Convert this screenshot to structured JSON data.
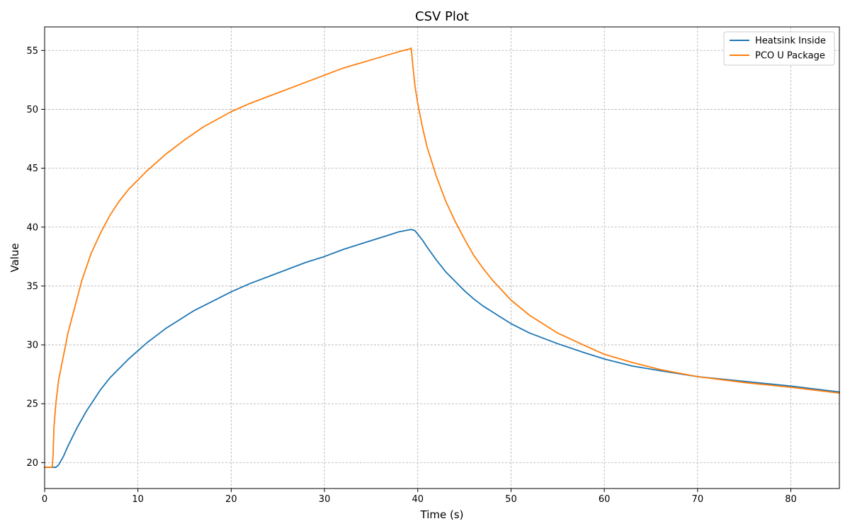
{
  "chart_data": {
    "type": "line",
    "title": "CSV Plot",
    "xlabel": "Time (s)",
    "ylabel": "Value",
    "xlim": [
      0,
      85.2
    ],
    "ylim": [
      17.8,
      57.0
    ],
    "xticks": [
      0,
      10,
      20,
      30,
      40,
      50,
      60,
      70,
      80
    ],
    "yticks": [
      20,
      25,
      30,
      35,
      40,
      45,
      50,
      55
    ],
    "grid": true,
    "legend_position": "top-right",
    "series": [
      {
        "name": "Heatsink Inside",
        "color": "#1f77b4",
        "x": [
          0,
          1,
          1.2,
          1.5,
          2,
          2.5,
          3,
          3.5,
          4,
          4.5,
          5,
          6,
          7,
          8,
          9,
          10,
          11,
          12,
          13,
          14,
          15,
          16,
          17,
          18,
          20,
          22,
          24,
          26,
          28,
          30,
          32,
          34,
          36,
          38,
          39.3,
          39.7,
          40,
          40.5,
          41,
          42,
          43,
          44,
          45,
          46,
          47,
          48,
          49,
          50,
          52,
          55,
          58,
          60,
          63,
          66,
          70,
          75,
          80,
          85.2
        ],
        "y": [
          19.6,
          19.6,
          19.6,
          19.8,
          20.5,
          21.4,
          22.2,
          23.0,
          23.7,
          24.4,
          25.0,
          26.2,
          27.2,
          28.0,
          28.8,
          29.5,
          30.2,
          30.8,
          31.4,
          31.9,
          32.4,
          32.9,
          33.3,
          33.7,
          34.5,
          35.2,
          35.8,
          36.4,
          37.0,
          37.5,
          38.1,
          38.6,
          39.1,
          39.6,
          39.8,
          39.7,
          39.4,
          38.9,
          38.3,
          37.2,
          36.2,
          35.4,
          34.6,
          33.9,
          33.3,
          32.8,
          32.3,
          31.8,
          31.0,
          30.1,
          29.3,
          28.8,
          28.2,
          27.8,
          27.3,
          26.9,
          26.5,
          26.0
        ]
      },
      {
        "name": "PCO U Package",
        "color": "#ff7f0e",
        "x": [
          0,
          0.8,
          0.9,
          1.0,
          1.2,
          1.5,
          2,
          2.5,
          3,
          3.5,
          4,
          5,
          6,
          7,
          8,
          9,
          10,
          11,
          12,
          13,
          14,
          15,
          17,
          20,
          22,
          25,
          28,
          30,
          32,
          35,
          38,
          39.0,
          39.3,
          39.5,
          39.7,
          40,
          40.5,
          41,
          42,
          43,
          44,
          45,
          46,
          47,
          48,
          50,
          52,
          55,
          58,
          60,
          63,
          66,
          70,
          75,
          80,
          85.2
        ],
        "y": [
          19.6,
          19.6,
          20.5,
          23.0,
          25.0,
          27.0,
          29.0,
          31.0,
          32.5,
          34.0,
          35.5,
          37.8,
          39.5,
          41.0,
          42.2,
          43.2,
          44.0,
          44.8,
          45.5,
          46.2,
          46.8,
          47.4,
          48.5,
          49.8,
          50.5,
          51.4,
          52.3,
          52.9,
          53.5,
          54.2,
          54.9,
          55.1,
          55.2,
          53.5,
          52.0,
          50.5,
          48.5,
          46.8,
          44.3,
          42.2,
          40.5,
          39.0,
          37.6,
          36.5,
          35.5,
          33.8,
          32.5,
          31.0,
          29.9,
          29.2,
          28.5,
          27.9,
          27.3,
          26.8,
          26.4,
          25.9
        ]
      }
    ]
  }
}
